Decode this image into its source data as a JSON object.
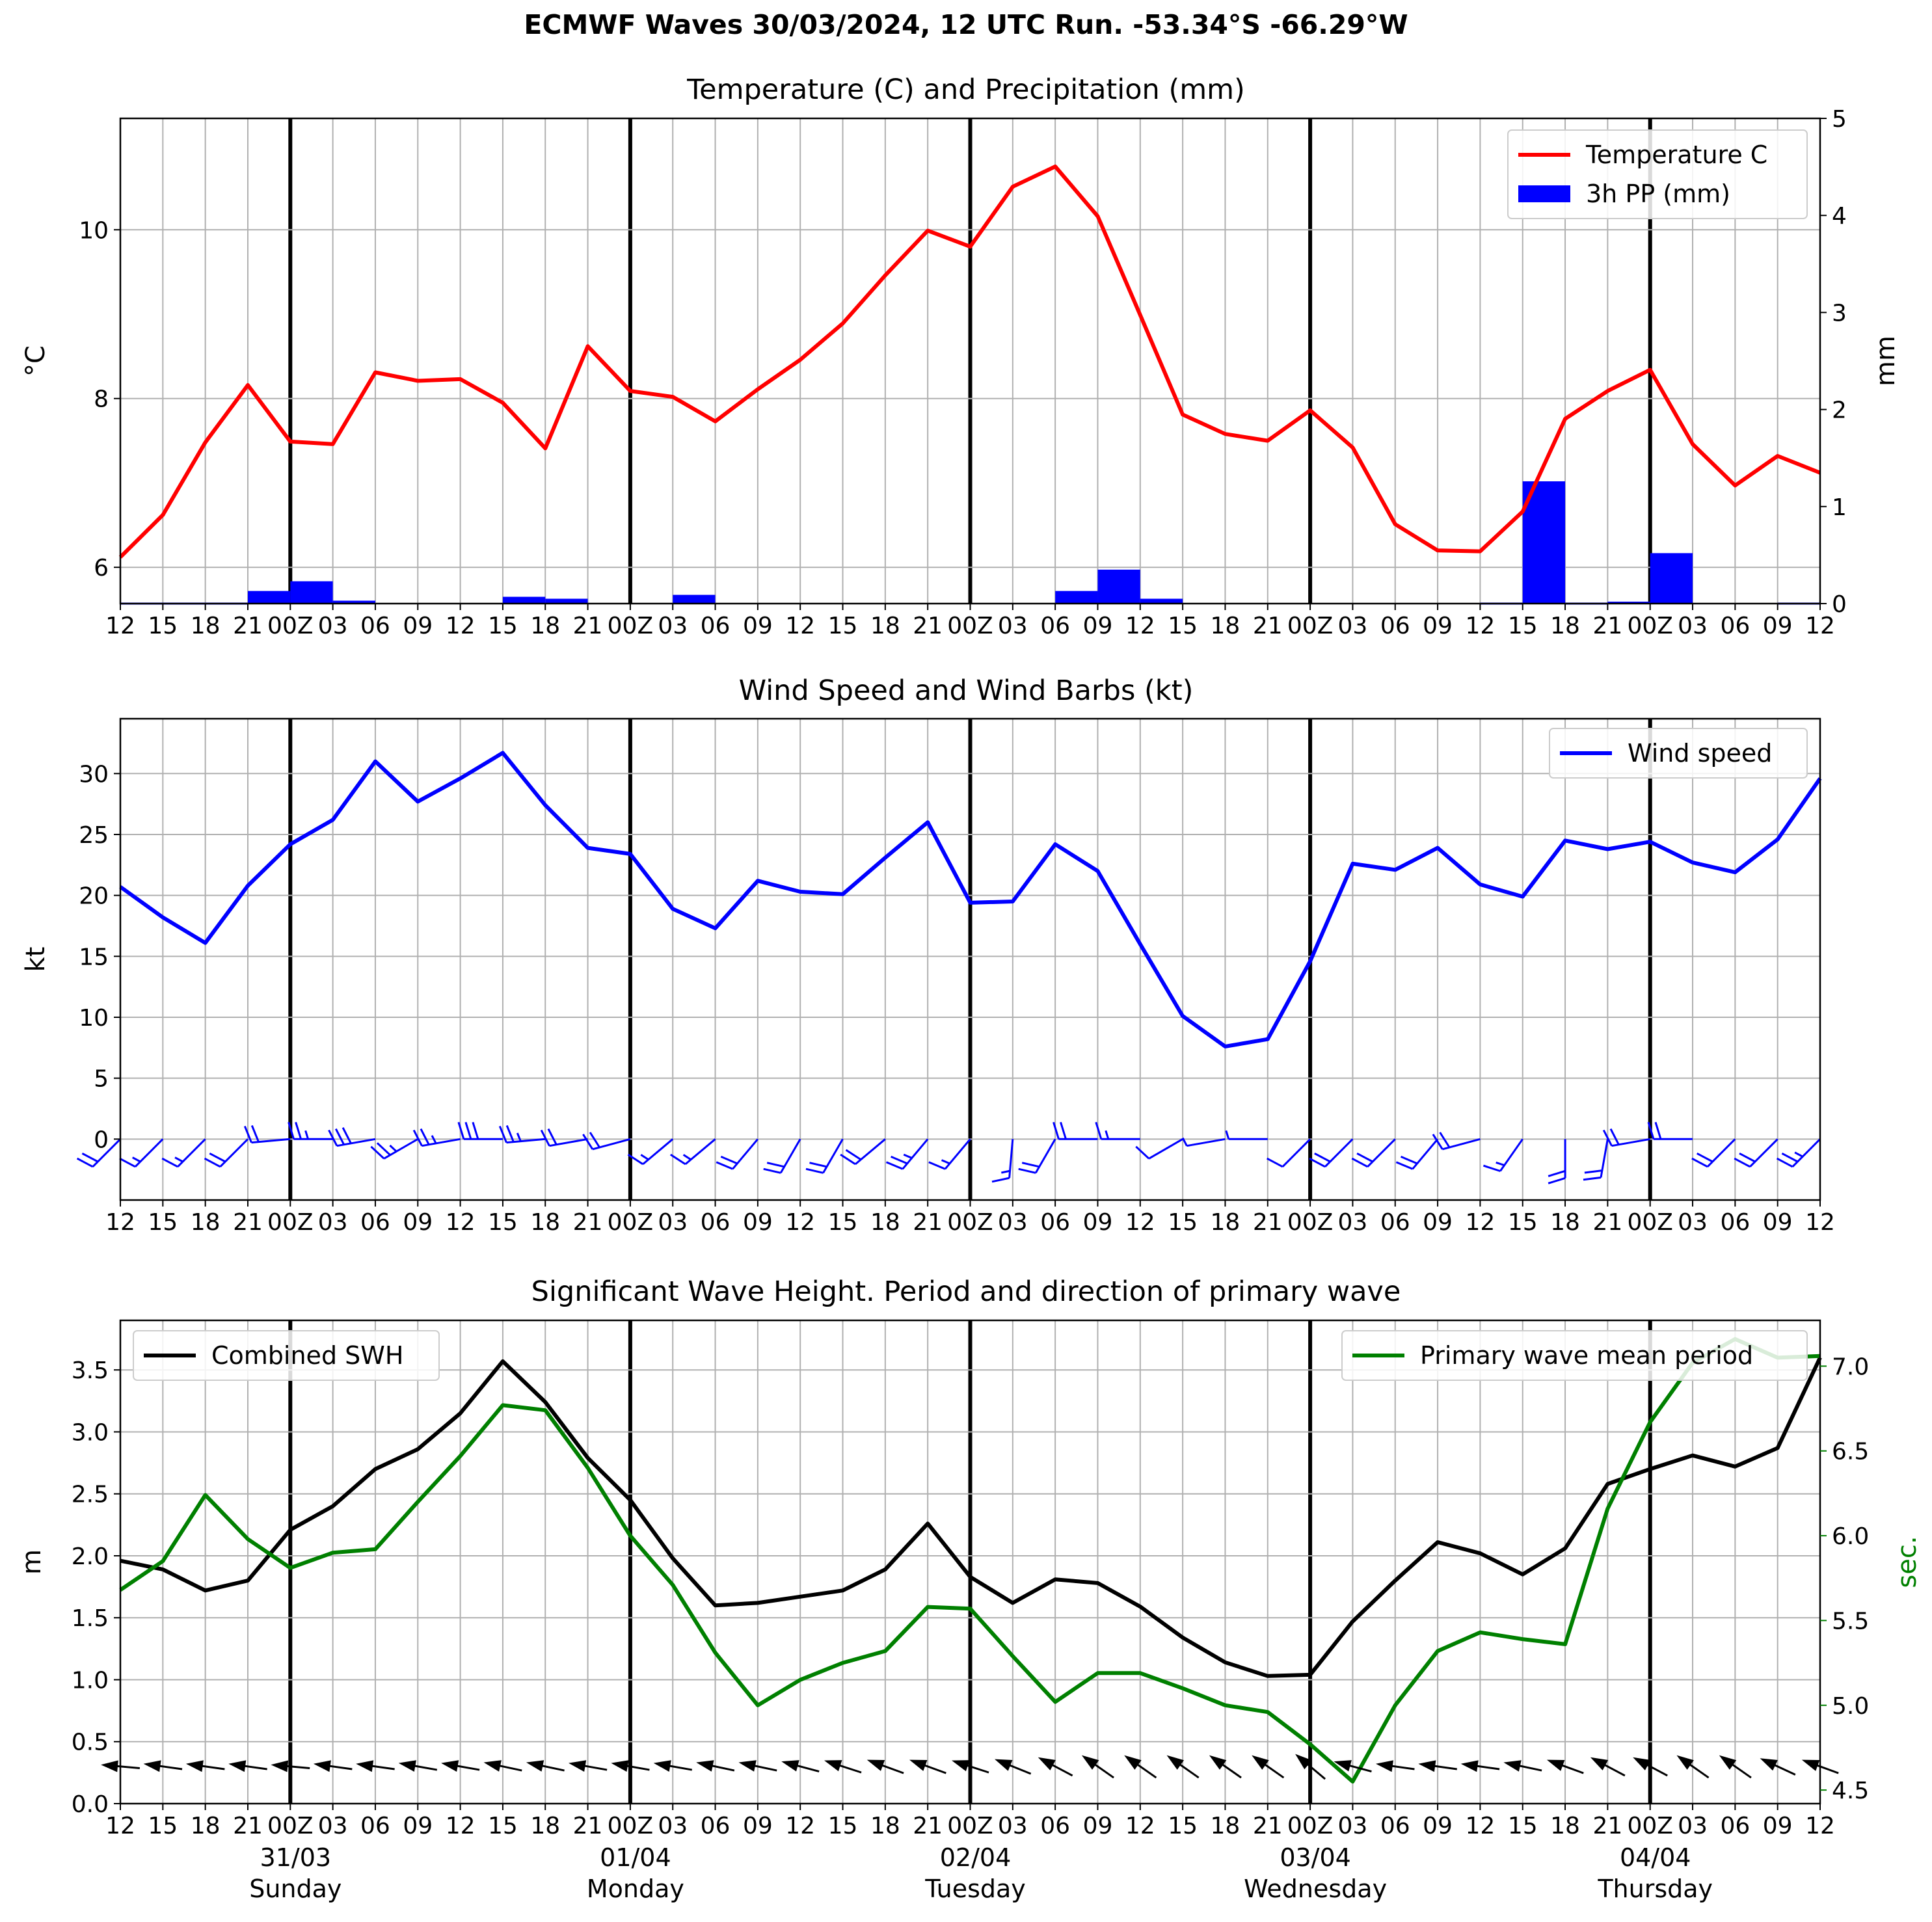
{
  "suptitle": "ECMWF Waves 30/03/2024, 12 UTC Run. -53.34°S -66.29°W",
  "time_ticks": [
    "12",
    "15",
    "18",
    "21",
    "00Z",
    "03",
    "06",
    "09",
    "12",
    "15",
    "18",
    "21",
    "00Z",
    "03",
    "06",
    "09",
    "12",
    "15",
    "18",
    "21",
    "00Z",
    "03",
    "06",
    "09",
    "12",
    "15",
    "18",
    "21",
    "00Z",
    "03",
    "06",
    "09",
    "12",
    "15",
    "18",
    "21",
    "00Z",
    "03",
    "06",
    "09",
    "12"
  ],
  "day_labels": [
    {
      "date": "31/03",
      "day": "Sunday"
    },
    {
      "date": "01/04",
      "day": "Monday"
    },
    {
      "date": "02/04",
      "day": "Tuesday"
    },
    {
      "date": "03/04",
      "day": "Wednesday"
    },
    {
      "date": "04/04",
      "day": "Thursday"
    }
  ],
  "colors": {
    "temperature": "#ff0000",
    "precip": "#0000ff",
    "wind": "#0000ff",
    "swh": "#000000",
    "period": "#008000",
    "grid": "#b0b0b0"
  },
  "chart_data": [
    {
      "type": "line",
      "title": "Temperature (C) and Precipitation (mm)",
      "ylabel": "$^\\circ$C",
      "y2label": "mm",
      "ylim": [
        5.57,
        11.32
      ],
      "y2lim": [
        0,
        5
      ],
      "yticks": [
        "6",
        "8",
        "10"
      ],
      "y2ticks": [
        "0",
        "1",
        "2",
        "3",
        "4",
        "5"
      ],
      "grid": true,
      "legend_position": "top-right",
      "series": [
        {
          "name": "Temperature C",
          "axis": "left",
          "kind": "line",
          "values": [
            6.12,
            6.62,
            7.48,
            8.16,
            7.49,
            7.46,
            8.31,
            8.21,
            8.23,
            7.95,
            7.41,
            8.62,
            8.09,
            8.02,
            7.73,
            8.11,
            8.46,
            8.89,
            9.46,
            9.99,
            9.8,
            10.51,
            10.75,
            10.16,
            8.99,
            7.81,
            7.58,
            7.5,
            7.86,
            7.42,
            6.51,
            6.2,
            6.19,
            6.66,
            7.76,
            8.09,
            8.34,
            7.46,
            6.97,
            7.32,
            7.12
          ]
        },
        {
          "name": "3h PP (mm)",
          "axis": "right",
          "kind": "bar",
          "values": [
            null,
            0.01,
            0.01,
            0.01,
            0.13,
            0.23,
            0.03,
            0,
            0,
            0,
            0.07,
            0.05,
            0,
            0,
            0.09,
            0,
            0,
            0,
            0,
            0,
            0,
            0,
            0,
            0.13,
            0.35,
            0.05,
            0,
            0,
            0,
            0,
            0,
            0,
            0,
            0.01,
            1.26,
            0.01,
            0.02,
            0.52,
            0,
            0,
            0.01
          ]
        }
      ]
    },
    {
      "type": "line",
      "title": "Wind Speed and Wind Barbs (kt)",
      "ylabel": "kt",
      "ylim": [
        -5,
        34.5
      ],
      "yticks": [
        "0",
        "5",
        "10",
        "15",
        "20",
        "25",
        "30"
      ],
      "grid": true,
      "legend_position": "top-right",
      "series": [
        {
          "name": "Wind speed",
          "values": [
            20.7,
            18.2,
            16.1,
            20.8,
            24.2,
            26.2,
            31.0,
            27.7,
            29.6,
            31.7,
            27.4,
            23.9,
            23.4,
            18.9,
            17.3,
            21.2,
            20.3,
            20.1,
            23.1,
            26.0,
            19.4,
            19.5,
            24.2,
            22.0,
            16.0,
            10.1,
            7.6,
            8.2,
            14.6,
            22.6,
            22.1,
            23.9,
            20.9,
            19.9,
            24.5,
            23.8,
            24.4,
            22.7,
            21.9,
            24.6,
            29.6
          ]
        }
      ],
      "barbs": {
        "direction_deg": [
          225,
          225,
          225,
          225,
          265,
          270,
          260,
          240,
          260,
          270,
          265,
          260,
          255,
          230,
          230,
          220,
          210,
          210,
          230,
          220,
          220,
          185,
          210,
          270,
          270,
          240,
          260,
          270,
          225,
          225,
          225,
          220,
          255,
          215,
          180,
          190,
          260,
          270,
          225,
          225,
          225
        ],
        "speed": [
          20.7,
          18.2,
          16.1,
          20.8,
          24.2,
          26.2,
          31.0,
          27.7,
          29.6,
          31.7,
          27.4,
          23.9,
          23.4,
          18.9,
          17.3,
          21.2,
          20.3,
          20.1,
          23.1,
          26.0,
          19.4,
          19.5,
          24.2,
          22.0,
          16.0,
          10.1,
          7.6,
          8.2,
          14.6,
          22.6,
          22.1,
          23.9,
          20.9,
          19.9,
          24.5,
          23.8,
          24.4,
          22.7,
          21.9,
          24.6,
          29.6
        ]
      }
    },
    {
      "type": "line",
      "title": "Significant Wave Height. Period and direction of primary wave",
      "ylabel": "m",
      "y2label": "sec.",
      "ylim": [
        0,
        3.9
      ],
      "y2lim": [
        4.42,
        7.27
      ],
      "yticks": [
        "0.0",
        "0.5",
        "1.0",
        "1.5",
        "2.0",
        "2.5",
        "3.0",
        "3.5"
      ],
      "y2ticks": [
        "4.5",
        "5.0",
        "5.5",
        "6.0",
        "6.5",
        "7.0"
      ],
      "grid": true,
      "series": [
        {
          "name": "Combined SWH",
          "axis": "left",
          "legend_position": "top-left",
          "values": [
            1.96,
            1.89,
            1.72,
            1.8,
            2.21,
            2.4,
            2.7,
            2.86,
            3.15,
            3.57,
            3.24,
            2.79,
            2.45,
            1.98,
            1.6,
            1.62,
            1.67,
            1.72,
            1.89,
            2.26,
            1.83,
            1.62,
            1.81,
            1.78,
            1.59,
            1.34,
            1.14,
            1.03,
            1.04,
            1.47,
            1.8,
            2.11,
            2.02,
            1.85,
            2.06,
            2.58,
            2.7,
            2.81,
            2.72,
            2.87,
            3.6
          ]
        },
        {
          "name": "Primary wave mean period",
          "axis": "right",
          "legend_position": "top-right",
          "values": [
            5.68,
            5.85,
            6.24,
            5.98,
            5.81,
            5.9,
            5.92,
            6.2,
            6.47,
            6.77,
            6.74,
            6.4,
            6.0,
            5.71,
            5.31,
            5.0,
            5.15,
            5.25,
            5.32,
            5.58,
            5.57,
            5.29,
            5.02,
            5.19,
            5.19,
            5.1,
            5.0,
            4.96,
            4.77,
            4.55,
            5.0,
            5.32,
            5.43,
            5.39,
            5.36,
            6.16,
            6.67,
            7.02,
            7.16,
            7.05,
            7.06
          ]
        }
      ],
      "wave_direction_deg": [
        275,
        278,
        278,
        278,
        275,
        278,
        278,
        280,
        280,
        282,
        282,
        280,
        280,
        280,
        282,
        282,
        285,
        288,
        290,
        290,
        288,
        292,
        298,
        305,
        305,
        305,
        305,
        305,
        310,
        285,
        278,
        278,
        278,
        282,
        290,
        298,
        298,
        305,
        305,
        295,
        290
      ]
    }
  ]
}
